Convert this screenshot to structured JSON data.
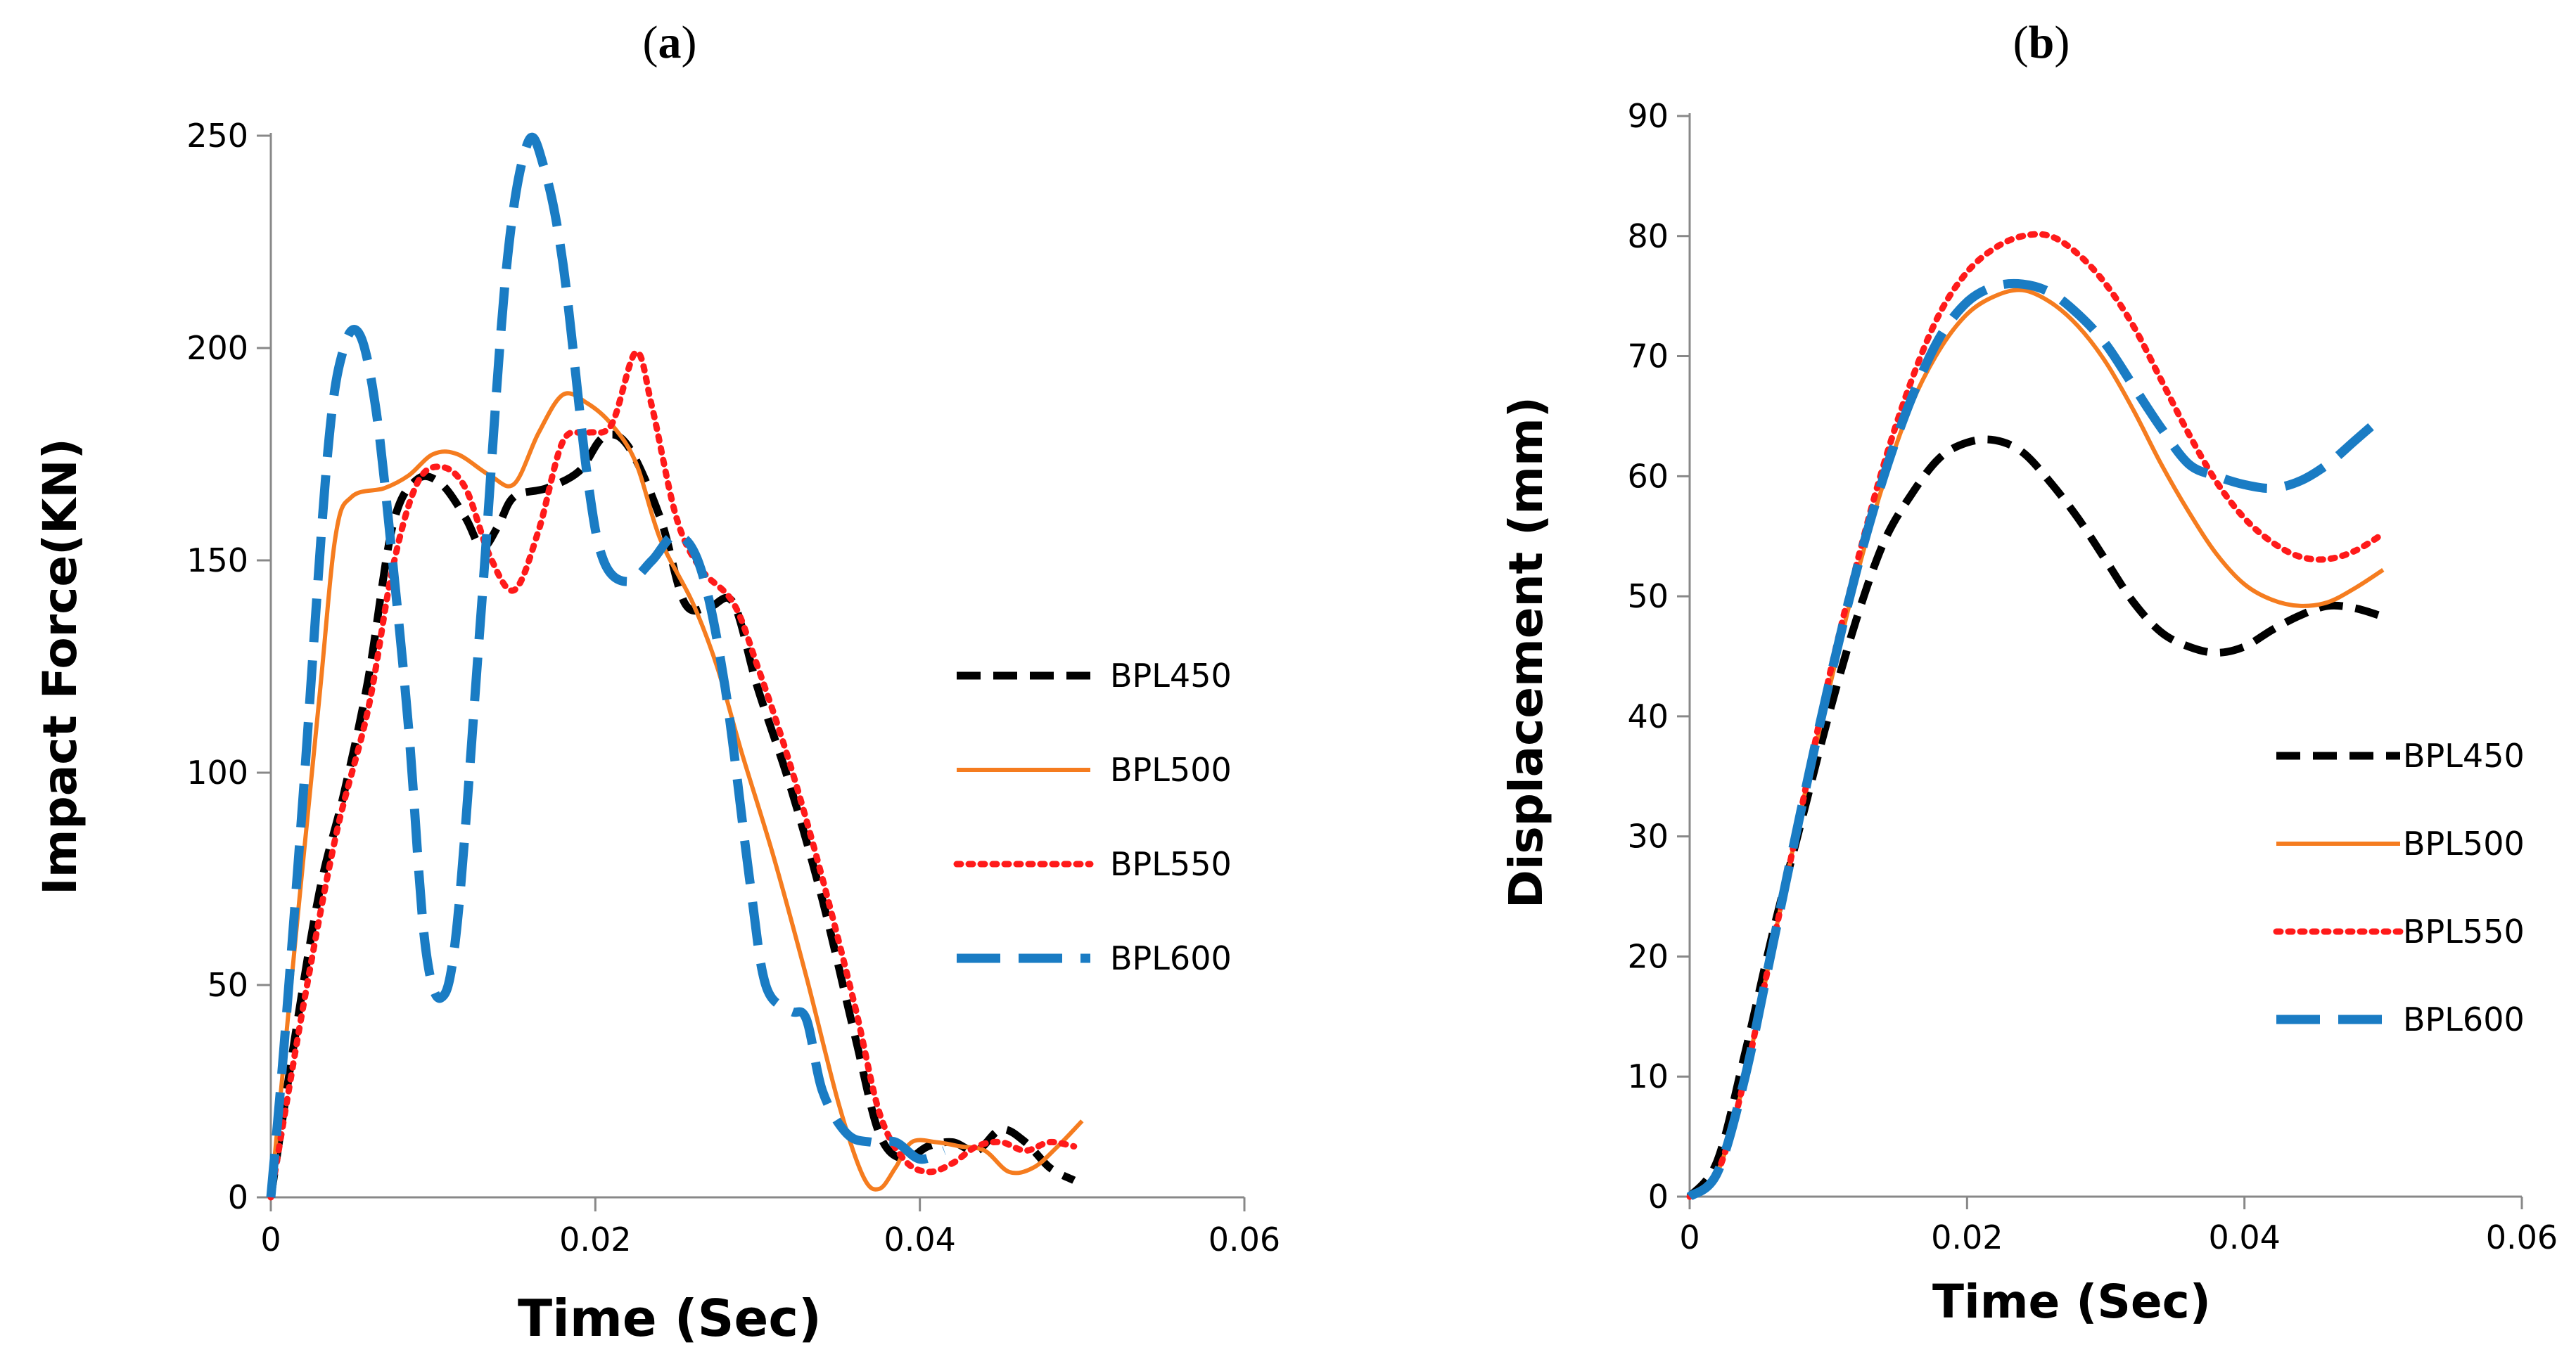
{
  "figure": {
    "label_a": "a",
    "label_b": "b"
  },
  "colors": {
    "BPL450": "#000000",
    "BPL500": "#F57C1F",
    "BPL550": "#FF1A1A",
    "BPL600": "#1A7CC4"
  },
  "chart_data": [
    {
      "panel": "a",
      "type": "line",
      "title": "",
      "xlabel": "Time (Sec)",
      "ylabel": "Impact Force(KN)",
      "xlim": [
        0,
        0.06
      ],
      "ylim": [
        0,
        250
      ],
      "xticks": [
        0,
        0.02,
        0.04,
        0.06
      ],
      "xtick_labels": [
        "0",
        "0.02",
        "0.04",
        "0.06"
      ],
      "yticks": [
        0,
        50,
        100,
        150,
        200,
        250
      ],
      "ytick_labels": [
        "0",
        "50",
        "100",
        "150",
        "200",
        "250"
      ],
      "legend_position": "right",
      "series": [
        {
          "name": "BPL450",
          "style": "dashed",
          "points": [
            [
              0,
              0
            ],
            [
              0.0015,
              38
            ],
            [
              0.003,
              72
            ],
            [
              0.0045,
              95
            ],
            [
              0.006,
              122
            ],
            [
              0.0075,
              158
            ],
            [
              0.009,
              169
            ],
            [
              0.0105,
              168
            ],
            [
              0.012,
              160
            ],
            [
              0.013,
              153
            ],
            [
              0.014,
              158
            ],
            [
              0.015,
              165
            ],
            [
              0.017,
              167
            ],
            [
              0.019,
              171
            ],
            [
              0.0205,
              179
            ],
            [
              0.022,
              177
            ],
            [
              0.024,
              160
            ],
            [
              0.0255,
              140
            ],
            [
              0.027,
              139
            ],
            [
              0.0285,
              140
            ],
            [
              0.03,
              120
            ],
            [
              0.032,
              97
            ],
            [
              0.034,
              70
            ],
            [
              0.036,
              38
            ],
            [
              0.0375,
              15
            ],
            [
              0.039,
              9
            ],
            [
              0.0405,
              12
            ],
            [
              0.042,
              13
            ],
            [
              0.0435,
              11
            ],
            [
              0.045,
              16
            ],
            [
              0.0465,
              13
            ],
            [
              0.048,
              7
            ],
            [
              0.0495,
              4
            ]
          ]
        },
        {
          "name": "BPL500",
          "style": "solid",
          "points": [
            [
              0,
              0
            ],
            [
              0.0015,
              60
            ],
            [
              0.003,
              118
            ],
            [
              0.004,
              156
            ],
            [
              0.005,
              165
            ],
            [
              0.007,
              167
            ],
            [
              0.0085,
              170
            ],
            [
              0.01,
              175
            ],
            [
              0.0115,
              175
            ],
            [
              0.0135,
              170
            ],
            [
              0.015,
              168
            ],
            [
              0.0165,
              180
            ],
            [
              0.018,
              189
            ],
            [
              0.0195,
              187
            ],
            [
              0.021,
              182
            ],
            [
              0.0225,
              173
            ],
            [
              0.024,
              155
            ],
            [
              0.026,
              140
            ],
            [
              0.0275,
              125
            ],
            [
              0.029,
              105
            ],
            [
              0.031,
              80
            ],
            [
              0.033,
              52
            ],
            [
              0.035,
              22
            ],
            [
              0.0365,
              5
            ],
            [
              0.0375,
              2
            ],
            [
              0.0385,
              7
            ],
            [
              0.0395,
              13
            ],
            [
              0.041,
              13
            ],
            [
              0.0425,
              12
            ],
            [
              0.044,
              11
            ],
            [
              0.0455,
              6
            ],
            [
              0.047,
              7
            ],
            [
              0.0485,
              12
            ],
            [
              0.05,
              18
            ]
          ]
        },
        {
          "name": "BPL550",
          "style": "dotted",
          "points": [
            [
              0,
              0
            ],
            [
              0.002,
              45
            ],
            [
              0.004,
              85
            ],
            [
              0.006,
              115
            ],
            [
              0.0075,
              148
            ],
            [
              0.009,
              168
            ],
            [
              0.0105,
              172
            ],
            [
              0.012,
              167
            ],
            [
              0.0135,
              151
            ],
            [
              0.015,
              143
            ],
            [
              0.0165,
              157
            ],
            [
              0.018,
              178
            ],
            [
              0.0195,
              180
            ],
            [
              0.021,
              182
            ],
            [
              0.0225,
              199
            ],
            [
              0.0235,
              186
            ],
            [
              0.025,
              160
            ],
            [
              0.0265,
              148
            ],
            [
              0.0285,
              140
            ],
            [
              0.03,
              125
            ],
            [
              0.032,
              102
            ],
            [
              0.034,
              75
            ],
            [
              0.036,
              45
            ],
            [
              0.0375,
              20
            ],
            [
              0.039,
              9
            ],
            [
              0.0405,
              6
            ],
            [
              0.042,
              8
            ],
            [
              0.0435,
              12
            ],
            [
              0.045,
              13
            ],
            [
              0.0465,
              11
            ],
            [
              0.048,
              13
            ],
            [
              0.0495,
              12
            ]
          ]
        },
        {
          "name": "BPL600",
          "style": "longdash",
          "points": [
            [
              0,
              0
            ],
            [
              0.0008,
              35
            ],
            [
              0.002,
              95
            ],
            [
              0.0035,
              175
            ],
            [
              0.0045,
              200
            ],
            [
              0.0055,
              203
            ],
            [
              0.0065,
              185
            ],
            [
              0.0075,
              150
            ],
            [
              0.0085,
              110
            ],
            [
              0.0095,
              60
            ],
            [
              0.0105,
              47
            ],
            [
              0.0115,
              65
            ],
            [
              0.013,
              140
            ],
            [
              0.0145,
              218
            ],
            [
              0.0158,
              248
            ],
            [
              0.0168,
              243
            ],
            [
              0.018,
              220
            ],
            [
              0.0195,
              170
            ],
            [
              0.0205,
              150
            ],
            [
              0.022,
              145
            ],
            [
              0.0235,
              150
            ],
            [
              0.025,
              156
            ],
            [
              0.0265,
              148
            ],
            [
              0.028,
              120
            ],
            [
              0.0295,
              75
            ],
            [
              0.0305,
              50
            ],
            [
              0.032,
              44
            ],
            [
              0.033,
              42
            ],
            [
              0.034,
              25
            ],
            [
              0.0355,
              15
            ],
            [
              0.037,
              13
            ],
            [
              0.0385,
              13
            ],
            [
              0.04,
              9
            ],
            [
              0.0415,
              11
            ]
          ]
        }
      ]
    },
    {
      "panel": "b",
      "type": "line",
      "title": "",
      "xlabel": "Time (Sec)",
      "ylabel": "Displacement (mm)",
      "xlim": [
        0,
        0.06
      ],
      "ylim": [
        0,
        90
      ],
      "xticks": [
        0,
        0.02,
        0.04,
        0.06
      ],
      "xtick_labels": [
        "0",
        "0.02",
        "0.04",
        "0.06"
      ],
      "yticks": [
        0,
        10,
        20,
        30,
        40,
        50,
        60,
        70,
        80,
        90
      ],
      "ytick_labels": [
        "0",
        "10",
        "20",
        "30",
        "40",
        "50",
        "60",
        "70",
        "80",
        "90"
      ],
      "legend_position": "right",
      "series": [
        {
          "name": "BPL450",
          "style": "dashed",
          "points": [
            [
              0,
              0
            ],
            [
              0.002,
              3
            ],
            [
              0.004,
              12
            ],
            [
              0.006,
              22
            ],
            [
              0.008,
              31
            ],
            [
              0.01,
              40
            ],
            [
              0.012,
              48
            ],
            [
              0.014,
              54.5
            ],
            [
              0.016,
              58.5
            ],
            [
              0.018,
              61.5
            ],
            [
              0.02,
              62.8
            ],
            [
              0.022,
              63
            ],
            [
              0.024,
              62
            ],
            [
              0.026,
              59.5
            ],
            [
              0.028,
              56.5
            ],
            [
              0.03,
              53
            ],
            [
              0.032,
              49.5
            ],
            [
              0.034,
              47
            ],
            [
              0.036,
              45.8
            ],
            [
              0.038,
              45.3
            ],
            [
              0.04,
              45.8
            ],
            [
              0.042,
              47.2
            ],
            [
              0.044,
              48.4
            ],
            [
              0.046,
              49.2
            ],
            [
              0.048,
              49
            ],
            [
              0.05,
              48.3
            ]
          ]
        },
        {
          "name": "BPL500",
          "style": "solid",
          "points": [
            [
              0,
              0
            ],
            [
              0.002,
              2
            ],
            [
              0.004,
              10
            ],
            [
              0.006,
              21
            ],
            [
              0.008,
              32
            ],
            [
              0.01,
              42
            ],
            [
              0.012,
              51.5
            ],
            [
              0.014,
              59.5
            ],
            [
              0.016,
              66
            ],
            [
              0.018,
              70.5
            ],
            [
              0.02,
              73.5
            ],
            [
              0.022,
              75
            ],
            [
              0.024,
              75.5
            ],
            [
              0.026,
              74.5
            ],
            [
              0.028,
              72.5
            ],
            [
              0.03,
              69.5
            ],
            [
              0.032,
              65.5
            ],
            [
              0.034,
              61
            ],
            [
              0.036,
              57
            ],
            [
              0.038,
              53.5
            ],
            [
              0.04,
              51
            ],
            [
              0.042,
              49.7
            ],
            [
              0.044,
              49.2
            ],
            [
              0.046,
              49.5
            ],
            [
              0.048,
              50.7
            ],
            [
              0.05,
              52.2
            ]
          ]
        },
        {
          "name": "BPL550",
          "style": "dotted",
          "points": [
            [
              0,
              0
            ],
            [
              0.002,
              2
            ],
            [
              0.004,
              10
            ],
            [
              0.006,
              21
            ],
            [
              0.008,
              32
            ],
            [
              0.01,
              43
            ],
            [
              0.012,
              52.5
            ],
            [
              0.014,
              61
            ],
            [
              0.016,
              68
            ],
            [
              0.018,
              73.5
            ],
            [
              0.02,
              77
            ],
            [
              0.022,
              79
            ],
            [
              0.024,
              80
            ],
            [
              0.026,
              80
            ],
            [
              0.028,
              78.5
            ],
            [
              0.03,
              76
            ],
            [
              0.032,
              72.5
            ],
            [
              0.034,
              68
            ],
            [
              0.036,
              63.5
            ],
            [
              0.038,
              59.5
            ],
            [
              0.04,
              56.5
            ],
            [
              0.042,
              54.5
            ],
            [
              0.044,
              53.3
            ],
            [
              0.046,
              53.1
            ],
            [
              0.048,
              53.8
            ],
            [
              0.05,
              55.2
            ]
          ]
        },
        {
          "name": "BPL600",
          "style": "longdash",
          "points": [
            [
              0,
              0
            ],
            [
              0.002,
              2
            ],
            [
              0.004,
              10
            ],
            [
              0.006,
              21
            ],
            [
              0.008,
              32
            ],
            [
              0.01,
              42.5
            ],
            [
              0.012,
              52
            ],
            [
              0.014,
              60
            ],
            [
              0.016,
              66.5
            ],
            [
              0.018,
              71.5
            ],
            [
              0.02,
              74.5
            ],
            [
              0.022,
              75.8
            ],
            [
              0.024,
              76
            ],
            [
              0.026,
              75.3
            ],
            [
              0.028,
              73.5
            ],
            [
              0.03,
              71
            ],
            [
              0.032,
              67.5
            ],
            [
              0.034,
              64
            ],
            [
              0.036,
              61
            ],
            [
              0.038,
              60
            ],
            [
              0.04,
              59.3
            ],
            [
              0.042,
              59
            ],
            [
              0.044,
              59.6
            ],
            [
              0.046,
              61
            ],
            [
              0.048,
              63
            ],
            [
              0.05,
              65
            ]
          ]
        }
      ]
    }
  ]
}
